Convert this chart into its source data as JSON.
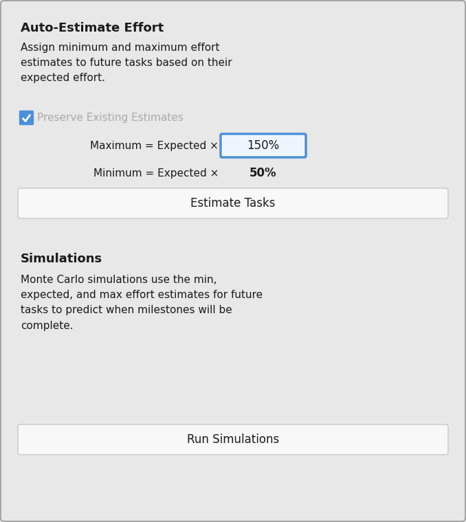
{
  "bg_color": "#e0e0e0",
  "border_color": "#999999",
  "panel_bg": "#e8e8e8",
  "title1": "Auto-Estimate Effort",
  "desc1": "Assign minimum and maximum effort\nestimates to future tasks based on their\nexpected effort.",
  "checkbox_label": "Preserve Existing Estimates",
  "checkbox_color": "#4a90d9",
  "max_label": "Maximum = Expected ×",
  "max_value": "150%",
  "min_label": "Minimum = Expected ×",
  "min_value": "50%",
  "btn1_label": "Estimate Tasks",
  "title2": "Simulations",
  "desc2": "Monte Carlo simulations use the min,\nexpected, and max effort estimates for future\ntasks to predict when milestones will be\ncomplete.",
  "btn2_label": "Run Simulations",
  "text_color": "#1a1a1a",
  "checkbox_text_color": "#aaaaaa",
  "button_bg": "#f8f8f8",
  "button_border": "#c8c8c8",
  "input_border_active": "#4a90d9",
  "input_bg": "#ffffff",
  "input_fill": "#ddeeff",
  "font_size_title": 13,
  "font_size_body": 11,
  "font_size_btn": 12,
  "font_size_checkbox": 11
}
